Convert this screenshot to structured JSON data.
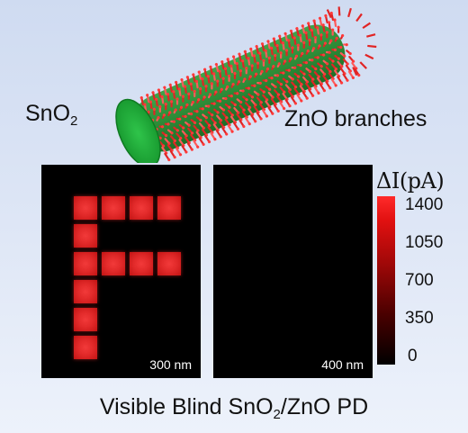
{
  "labels": {
    "core_prefix": "SnO",
    "core_sub": "2",
    "branches": "ZnO branches"
  },
  "maps": [
    {
      "caption": "300 nm",
      "pattern": "F",
      "active": true
    },
    {
      "caption": "400 nm",
      "pattern": "none",
      "active": false
    }
  ],
  "colorbar": {
    "title": "ΔI(pA)",
    "ticks": [
      "1400",
      "1050",
      "700",
      "350",
      "0"
    ],
    "colors": {
      "high": "#ff2a2a",
      "low": "#000000"
    }
  },
  "caption": {
    "part1": "Visible Blind SnO",
    "sub": "2",
    "part2": "/ZnO PD"
  }
}
